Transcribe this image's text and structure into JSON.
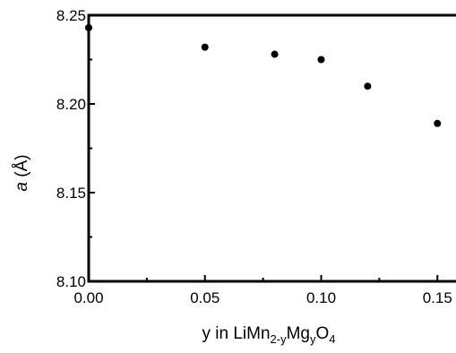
{
  "chart_data": {
    "type": "scatter",
    "title": "",
    "xlabel": {
      "main": "y in LiMn",
      "sub1": "2-y",
      "mid": "Mg",
      "sub2": "y",
      "end": "O",
      "sub3": "4"
    },
    "ylabel": {
      "symbol": "a",
      "unit": "(Å)"
    },
    "xlim": [
      0.0,
      0.158
    ],
    "ylim": [
      8.1,
      8.25
    ],
    "xticks": [
      0.0,
      0.05,
      0.1,
      0.15
    ],
    "xtick_labels": [
      "0.00",
      "0.05",
      "0.10",
      "0.15"
    ],
    "yticks": [
      8.1,
      8.15,
      8.2,
      8.25
    ],
    "ytick_labels": [
      "8.10",
      "8.15",
      "8.20",
      "8.25"
    ],
    "grid": false,
    "series": [
      {
        "x": [
          0.0,
          0.05,
          0.08,
          0.1,
          0.12,
          0.15
        ],
        "y": [
          8.243,
          8.232,
          8.228,
          8.225,
          8.21,
          8.189
        ],
        "color": "#000000"
      }
    ]
  }
}
